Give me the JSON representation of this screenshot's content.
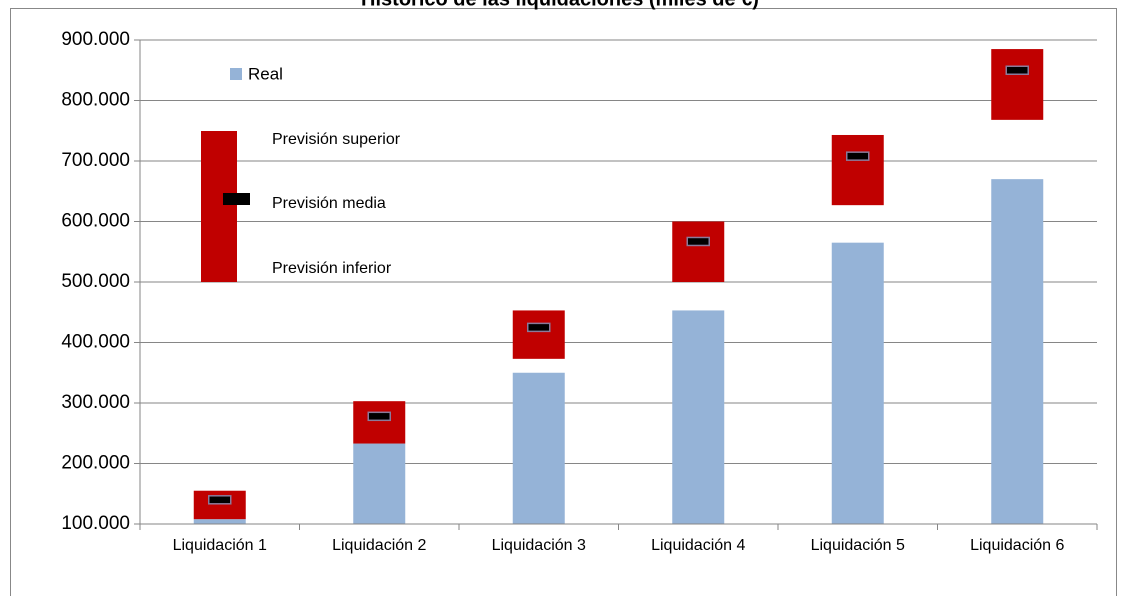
{
  "chart_data": {
    "type": "bar",
    "title": "Histórico de las liquidaciones (miles de €)",
    "categories": [
      "Liquidación 1",
      "Liquidación 2",
      "Liquidación 3",
      "Liquidación 4",
      "Liquidación 5",
      "Liquidación 6"
    ],
    "series": [
      {
        "name": "Real",
        "color": "#95b3d7",
        "values": [
          108000,
          233000,
          350000,
          453000,
          565000,
          670000
        ]
      },
      {
        "name": "Previsión inferior",
        "color": "#c00000",
        "values": [
          108000,
          233000,
          373000,
          500000,
          627000,
          768000
        ]
      },
      {
        "name": "Previsión superior",
        "color": "#c00000",
        "values": [
          155000,
          303000,
          453000,
          600000,
          743000,
          885000
        ]
      },
      {
        "name": "Previsión media",
        "color": "#000000",
        "values": [
          140000,
          278000,
          425000,
          567000,
          708000,
          850000
        ]
      }
    ],
    "ylim": [
      100000,
      900000
    ],
    "yticks": [
      {
        "value": 100000,
        "label": "100.000"
      },
      {
        "value": 200000,
        "label": "200.000"
      },
      {
        "value": 300000,
        "label": "300.000"
      },
      {
        "value": 400000,
        "label": "400.000"
      },
      {
        "value": 500000,
        "label": "500.000"
      },
      {
        "value": 600000,
        "label": "600.000"
      },
      {
        "value": 700000,
        "label": "700.000"
      },
      {
        "value": 800000,
        "label": "800.000"
      },
      {
        "value": 900000,
        "label": "900.000"
      }
    ],
    "grid": true
  }
}
